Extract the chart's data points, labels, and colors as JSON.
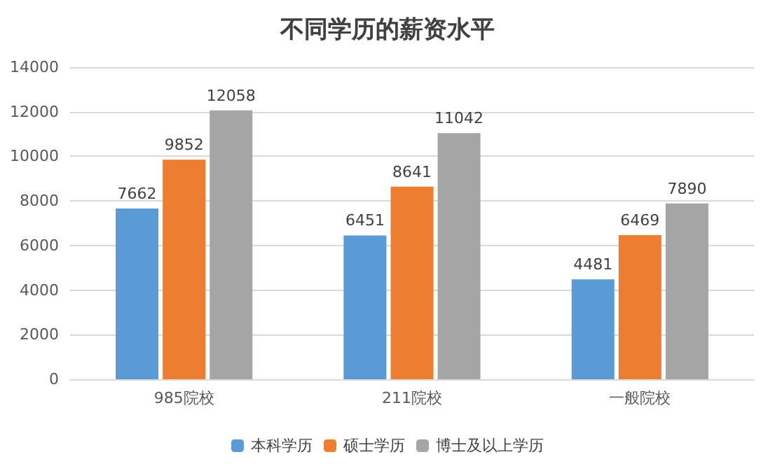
{
  "chart_data": {
    "type": "bar",
    "title": "不同学历的薪资水平",
    "categories": [
      "985院校",
      "211院校",
      "一般院校"
    ],
    "series": [
      {
        "name": "本科学历",
        "color": "#5b9bd5",
        "values": [
          7662,
          6451,
          4481
        ]
      },
      {
        "name": "硕士学历",
        "color": "#ed7d31",
        "values": [
          9852,
          8641,
          6469
        ]
      },
      {
        "name": "博士及以上学历",
        "color": "#a5a5a5",
        "values": [
          12058,
          11042,
          7890
        ]
      }
    ],
    "ylim": [
      0,
      14000
    ],
    "yticks": [
      0,
      2000,
      4000,
      6000,
      8000,
      10000,
      12000,
      14000
    ],
    "grid": "y",
    "legend": "bottom",
    "data_labels": true
  }
}
